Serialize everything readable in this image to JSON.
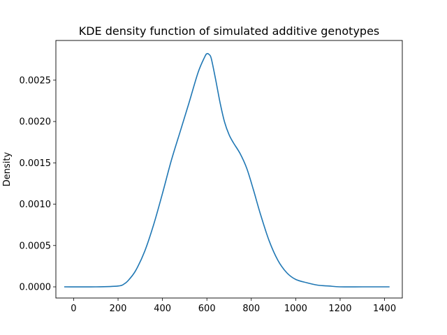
{
  "chart_data": {
    "type": "line",
    "title": "KDE density function of simulated additive genotypes",
    "xlabel": "",
    "ylabel": "Density",
    "xlim": [
      -80,
      1480
    ],
    "ylim": [
      -0.000135,
      0.00298
    ],
    "x_ticks": [
      0,
      200,
      400,
      600,
      800,
      1000,
      1200,
      1400
    ],
    "x_tick_labels": [
      "0",
      "200",
      "400",
      "600",
      "800",
      "1000",
      "1200",
      "1400"
    ],
    "y_ticks": [
      0,
      0.0005,
      0.001,
      0.0015,
      0.002,
      0.0025
    ],
    "y_tick_labels": [
      "0.0000",
      "0.0005",
      "0.0010",
      "0.0015",
      "0.0020",
      "0.0025"
    ],
    "grid": false,
    "colors": {
      "line": "#1f77b4",
      "axes": "#000000",
      "background": "#ffffff"
    },
    "series": [
      {
        "x": [
          -40,
          100,
          200,
          230,
          250,
          280,
          320,
          360,
          400,
          440,
          480,
          520,
          560,
          590,
          600,
          610,
          620,
          640,
          660,
          680,
          700,
          720,
          750,
          780,
          810,
          840,
          880,
          920,
          960,
          1000,
          1050,
          1100,
          1150,
          1200,
          1300,
          1420
        ],
        "y": [
          0.0,
          0.0,
          1e-05,
          4e-05,
          9e-05,
          0.0002,
          0.00043,
          0.00075,
          0.00113,
          0.00153,
          0.00188,
          0.00223,
          0.00259,
          0.00278,
          0.00282,
          0.00281,
          0.00276,
          0.0025,
          0.00222,
          0.00199,
          0.00184,
          0.00174,
          0.00161,
          0.00143,
          0.00117,
          0.00089,
          0.00056,
          0.00032,
          0.00017,
          9e-05,
          5e-05,
          2e-05,
          1e-05,
          0.0,
          0.0,
          0.0
        ]
      }
    ]
  }
}
